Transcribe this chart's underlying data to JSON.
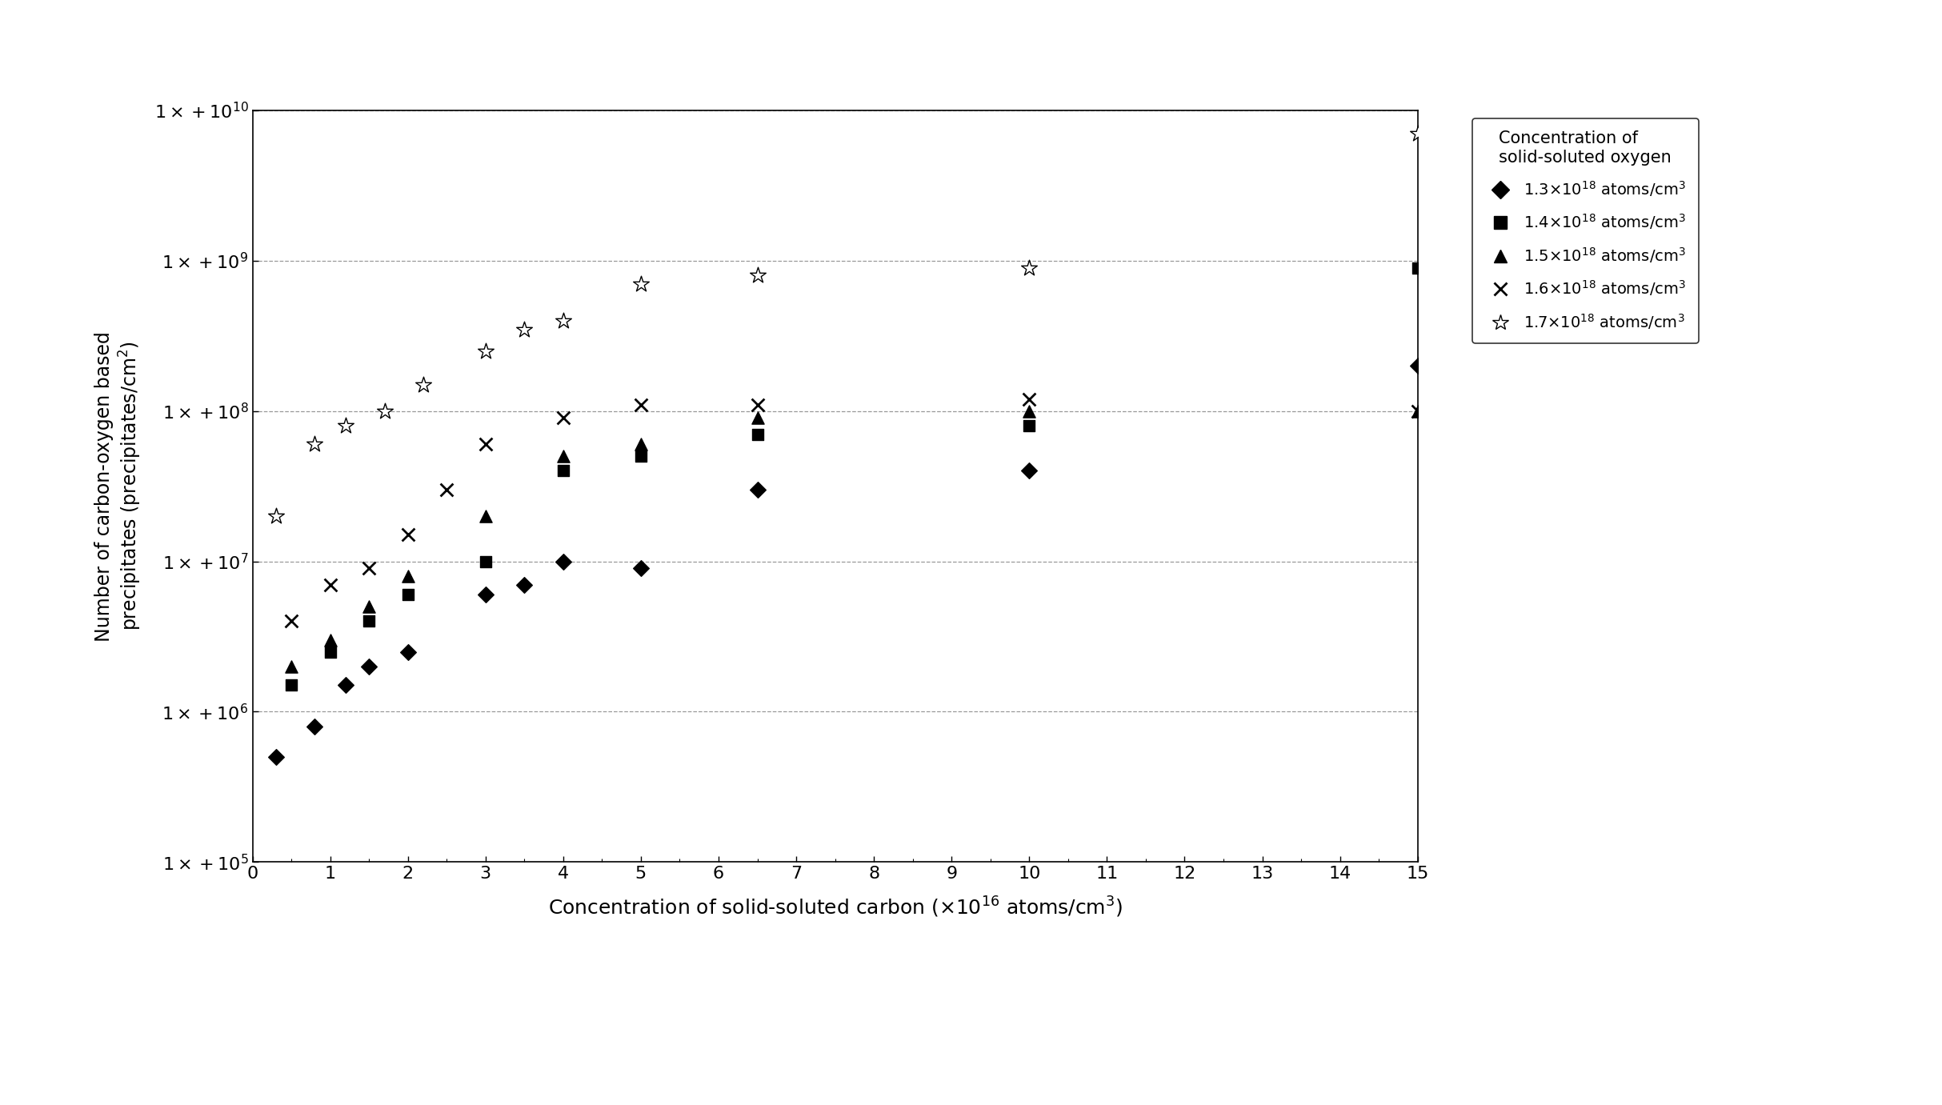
{
  "xlabel": "Concentration of solid-soluted carbon (×10$^{16}$ atoms/cm$^3$)",
  "ylabel": "Number of carbon-oxygen based\nprecipitates (precipitates/cm$^2$)",
  "xlim": [
    0,
    15
  ],
  "ylim": [
    100000.0,
    10000000000.0
  ],
  "xticks": [
    0,
    1,
    2,
    3,
    4,
    5,
    6,
    7,
    8,
    9,
    10,
    11,
    12,
    13,
    14,
    15
  ],
  "yticks": [
    100000.0,
    1000000.0,
    10000000.0,
    100000000.0,
    1000000000.0,
    10000000000.0
  ],
  "legend_title": "Concentration of\nsolid-soluted oxygen",
  "series": [
    {
      "label": "1.3×10$^{18}$ atoms/cm$^3$",
      "marker": "D",
      "x": [
        0.3,
        0.8,
        1.2,
        1.5,
        2.0,
        3.0,
        3.5,
        4.0,
        5.0,
        6.5,
        10.0,
        15.0
      ],
      "y": [
        500000.0,
        800000.0,
        1500000.0,
        2000000.0,
        2500000.0,
        6000000.0,
        7000000.0,
        10000000.0,
        9000000.0,
        30000000.0,
        40000000.0,
        200000000.0
      ]
    },
    {
      "label": "1.4×10$^{18}$ atoms/cm$^3$",
      "marker": "s",
      "x": [
        0.5,
        1.0,
        1.5,
        2.0,
        3.0,
        4.0,
        5.0,
        6.5,
        10.0,
        15.0
      ],
      "y": [
        1500000.0,
        2500000.0,
        4000000.0,
        6000000.0,
        10000000.0,
        40000000.0,
        50000000.0,
        70000000.0,
        80000000.0,
        900000000.0
      ]
    },
    {
      "label": "1.5×10$^{18}$ atoms/cm$^3$",
      "marker": "^",
      "x": [
        0.5,
        1.0,
        1.5,
        2.0,
        3.0,
        4.0,
        5.0,
        6.5,
        10.0,
        15.0
      ],
      "y": [
        2000000.0,
        3000000.0,
        5000000.0,
        8000000.0,
        20000000.0,
        50000000.0,
        60000000.0,
        90000000.0,
        100000000.0,
        100000000.0
      ]
    },
    {
      "label": "1.6×10$^{18}$ atoms/cm$^3$",
      "marker": "x",
      "x": [
        0.5,
        1.0,
        1.5,
        2.0,
        2.5,
        3.0,
        4.0,
        5.0,
        6.5,
        10.0,
        15.0
      ],
      "y": [
        4000000.0,
        7000000.0,
        9000000.0,
        15000000.0,
        30000000.0,
        60000000.0,
        90000000.0,
        110000000.0,
        110000000.0,
        120000000.0,
        100000000.0
      ]
    },
    {
      "label": "1.7×10$^{18}$ atoms/cm$^3$",
      "marker": "star",
      "x": [
        0.3,
        0.8,
        1.2,
        1.7,
        2.2,
        3.0,
        3.5,
        4.0,
        5.0,
        6.5,
        10.0,
        15.0
      ],
      "y": [
        20000000.0,
        60000000.0,
        80000000.0,
        100000000.0,
        150000000.0,
        250000000.0,
        350000000.0,
        400000000.0,
        700000000.0,
        800000000.0,
        900000000.0,
        7000000000.0
      ]
    }
  ],
  "background_color": "white",
  "grid_color": "#999999",
  "fig_width": 24.27,
  "fig_height": 13.81,
  "dpi": 100
}
